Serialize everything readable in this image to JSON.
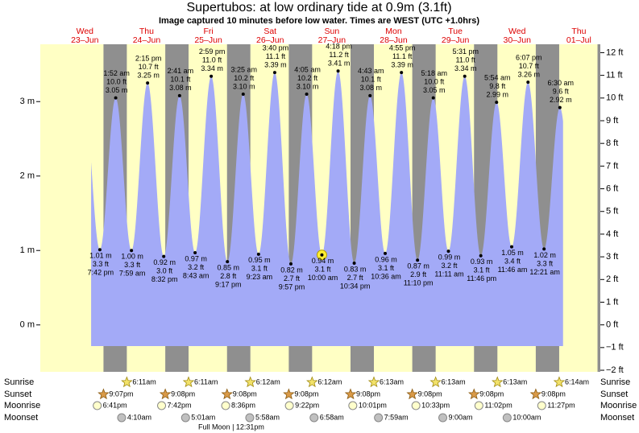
{
  "chart_data": {
    "type": "area",
    "title": "Supertubos: at low  ordinary tide at 0.9m (3.1ft)",
    "subtitle": "Image captured 10 minutes before low water. Times are WEST (UTC +1.0hrs)",
    "days": [
      {
        "weekday": "Wed",
        "date": "23–Jun"
      },
      {
        "weekday": "Thu",
        "date": "24–Jun"
      },
      {
        "weekday": "Fri",
        "date": "25–Jun"
      },
      {
        "weekday": "Sat",
        "date": "26–Jun"
      },
      {
        "weekday": "Sun",
        "date": "27–Jun"
      },
      {
        "weekday": "Mon",
        "date": "28–Jun"
      },
      {
        "weekday": "Tue",
        "date": "29–Jun"
      },
      {
        "weekday": "Wed",
        "date": "30–Jun"
      },
      {
        "weekday": "Thu",
        "date": "01–Jul"
      }
    ],
    "x": [
      "7:42 pm",
      "1:52 am",
      "7:59 am",
      "2:15 pm",
      "8:32 pm",
      "2:41 am",
      "8:43 am",
      "2:59 pm",
      "9:17 pm",
      "3:25 am",
      "9:23 am",
      "3:40 pm",
      "9:57 pm",
      "4:05 am",
      "10:00 am",
      "4:18 pm",
      "10:34 pm",
      "4:43 am",
      "10:36 am",
      "4:55 pm",
      "11:10 pm",
      "5:18 am",
      "11:11 am",
      "5:31 pm",
      "11:46 pm",
      "5:54 am",
      "11:46 am",
      "6:07 pm",
      "12:21 am",
      "6:30 am"
    ],
    "values": [
      1.01,
      3.05,
      1.0,
      3.25,
      0.92,
      3.08,
      0.97,
      3.34,
      0.85,
      3.1,
      0.95,
      3.39,
      0.82,
      3.1,
      0.94,
      3.41,
      0.83,
      3.08,
      0.96,
      3.39,
      0.87,
      3.05,
      0.99,
      3.34,
      0.93,
      2.99,
      1.05,
      3.26,
      1.02,
      2.92
    ],
    "value_labels": [
      "1.01 m",
      "3.05 m",
      "1.00 m",
      "3.25 m",
      "0.92 m",
      "3.08 m",
      "0.97 m",
      "3.34 m",
      "0.85 m",
      "3.10 m",
      "0.95 m",
      "3.39 m",
      "0.82 m",
      "3.10 m",
      "0.94 m",
      "3.41 m",
      "0.83 m",
      "3.08 m",
      "0.96 m",
      "3.39 m",
      "0.87 m",
      "3.05 m",
      "0.99 m",
      "3.34 m",
      "0.93 m",
      "2.99 m",
      "1.05 m",
      "3.26 m",
      "1.02 m",
      "2.92 m"
    ],
    "ft_labels": [
      "3.3 ft",
      "10.0 ft",
      "3.3 ft",
      "10.7 ft",
      "3.0 ft",
      "10.1 ft",
      "3.2 ft",
      "11.0 ft",
      "2.8 ft",
      "10.2 ft",
      "3.1 ft",
      "11.1 ft",
      "2.7 ft",
      "10.2 ft",
      "3.1 ft",
      "11.2 ft",
      "2.7 ft",
      "10.1 ft",
      "3.1 ft",
      "11.1 ft",
      "2.9 ft",
      "10.0 ft",
      "3.2 ft",
      "11.0 ft",
      "3.1 ft",
      "9.8 ft",
      "3.4 ft",
      "10.7 ft",
      "3.3 ft",
      "9.6 ft"
    ],
    "marker_index": 14,
    "color": "#a3aaf7",
    "ylim": [
      -0.63,
      3.77
    ],
    "yticks": [
      {
        "value": 0,
        "label": "0 m"
      },
      {
        "value": 1,
        "label": "1 m"
      },
      {
        "value": 2,
        "label": "2 m"
      },
      {
        "value": 3,
        "label": "3 m"
      }
    ],
    "y2lim": [
      -2.07,
      12.37
    ],
    "y2ticks": [
      {
        "value": -2,
        "label": "−2 ft"
      },
      {
        "value": -1,
        "label": "−1 ft"
      },
      {
        "value": 0,
        "label": "0 ft"
      },
      {
        "value": 1,
        "label": "1 ft"
      },
      {
        "value": 2,
        "label": "2 ft"
      },
      {
        "value": 3,
        "label": "3 ft"
      },
      {
        "value": 4,
        "label": "4 ft"
      },
      {
        "value": 5,
        "label": "5 ft"
      },
      {
        "value": 6,
        "label": "6 ft"
      },
      {
        "value": 7,
        "label": "7 ft"
      },
      {
        "value": 8,
        "label": "8 ft"
      },
      {
        "value": 9,
        "label": "9 ft"
      },
      {
        "value": 10,
        "label": "10 ft"
      },
      {
        "value": 11,
        "label": "11 ft"
      },
      {
        "value": 12,
        "label": "12 ft"
      }
    ],
    "sun_moon": {
      "labels": [
        "Sunrise",
        "Sunset",
        "Moonrise",
        "Moonset"
      ],
      "sunrise": [
        "6:11am",
        "6:11am",
        "6:12am",
        "6:12am",
        "6:13am",
        "6:13am",
        "6:13am",
        "6:14am"
      ],
      "sunset": [
        "9:07pm",
        "9:08pm",
        "9:08pm",
        "9:08pm",
        "9:08pm",
        "9:08pm",
        "9:08pm",
        "9:08pm"
      ],
      "moonrise": [
        "6:41pm",
        "7:42pm",
        "8:36pm",
        "9:22pm",
        "10:01pm",
        "10:33pm",
        "11:02pm",
        "11:27pm"
      ],
      "moonset": [
        "4:10am",
        "5:01am",
        "5:58am",
        "6:58am",
        "7:59am",
        "9:00am",
        "10:00am"
      ],
      "full_moon": "Full Moon | 12:31pm"
    }
  }
}
